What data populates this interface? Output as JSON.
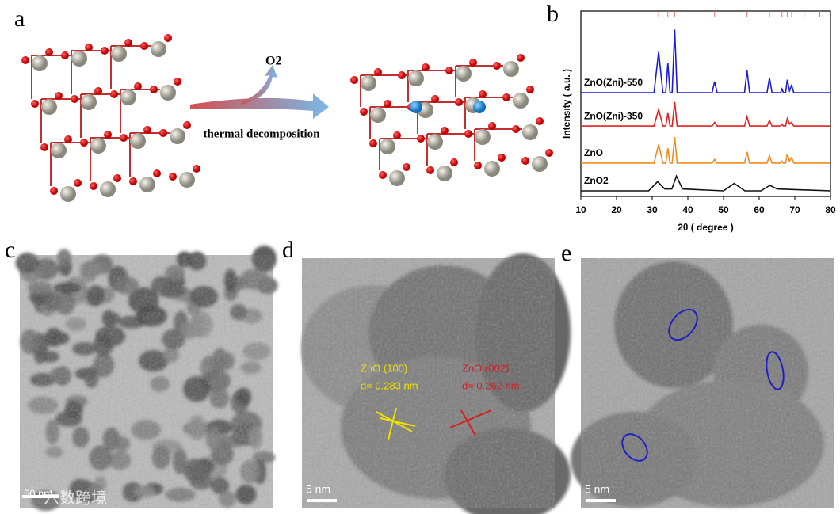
{
  "panels": {
    "a": {
      "letter": "a",
      "gas": "O2",
      "arrow_label": "thermal decomposition"
    },
    "b": {
      "letter": "b"
    },
    "c": {
      "letter": "c",
      "scale_bar": "50 nm",
      "watermark": "六数跨境"
    },
    "d": {
      "letter": "d",
      "scale_bar": "5 nm",
      "plane1": "ZnO (100)",
      "spacing1": "d= 0.283 nm",
      "plane2": "ZnO (002)",
      "spacing2": "d= 0.262 nm"
    },
    "e": {
      "letter": "e",
      "scale_bar": "5 nm"
    }
  },
  "chart_data": {
    "type": "line",
    "x_label": "2θ ( degree )",
    "y_label": "Intensity ( a.u. )",
    "xlim": [
      10,
      80
    ],
    "xticks": [
      10,
      20,
      30,
      40,
      50,
      60,
      70,
      80
    ],
    "ylim": [
      0,
      100
    ],
    "reference_peaks": [
      31.8,
      34.4,
      36.3,
      47.5,
      56.6,
      62.9,
      66.4,
      67.9,
      69.1,
      72.6,
      77.0
    ],
    "reference_color": "#e07070",
    "series": [
      {
        "name": "ZnO(Zni)-550",
        "color": "#1a1adb",
        "x": [
          10,
          30.5,
          31.8,
          33,
          33.8,
          34.4,
          35,
          35.6,
          36.3,
          37,
          46.8,
          47.5,
          48.2,
          55.9,
          56.6,
          57.3,
          62.2,
          62.9,
          63.6,
          66.0,
          66.4,
          66.8,
          67.4,
          67.9,
          68.5,
          69.1,
          69.7,
          80
        ],
        "values": [
          56,
          56,
          78,
          56,
          56,
          72,
          56,
          56,
          90,
          56,
          56,
          62,
          56,
          56,
          68,
          56,
          56,
          64,
          56,
          56,
          58,
          56,
          56,
          63,
          57,
          60,
          56,
          56
        ]
      },
      {
        "name": "ZnO(Zni)-350",
        "color": "#e02020",
        "x": [
          10,
          30.5,
          31.8,
          33,
          33.8,
          34.4,
          35,
          35.6,
          36.3,
          37,
          46.8,
          47.5,
          48.2,
          55.9,
          56.6,
          57.3,
          62.2,
          62.9,
          63.6,
          66.0,
          66.4,
          66.8,
          67.4,
          67.9,
          68.5,
          69.1,
          69.7,
          80
        ],
        "values": [
          38,
          38,
          47,
          38,
          38,
          45,
          38,
          38,
          51,
          38,
          38,
          40,
          38,
          38,
          43,
          38,
          38,
          41,
          38,
          38,
          39,
          38,
          38,
          42,
          39,
          40,
          38,
          38
        ]
      },
      {
        "name": "ZnO",
        "color": "#f08a1c",
        "x": [
          10,
          30.5,
          31.8,
          33,
          33.8,
          34.4,
          35,
          35.6,
          36.3,
          37,
          46.8,
          47.5,
          48.2,
          55.9,
          56.6,
          57.3,
          62.2,
          62.9,
          63.6,
          66.0,
          66.4,
          66.8,
          67.4,
          67.9,
          68.5,
          69.1,
          69.7,
          80
        ],
        "values": [
          18,
          18,
          28,
          18,
          18,
          26,
          18,
          18,
          32,
          18,
          18,
          20,
          18,
          18,
          24,
          18,
          18,
          22,
          18,
          18,
          19,
          18,
          18,
          23,
          19,
          21,
          18,
          18
        ]
      },
      {
        "name": "ZnO2",
        "color": "#111111",
        "x": [
          10,
          29,
          31.5,
          33.5,
          35.5,
          36.8,
          38.5,
          50,
          53,
          56,
          60.5,
          63,
          65,
          80
        ],
        "values": [
          3,
          3,
          8,
          4,
          4,
          11,
          4,
          3,
          7,
          3,
          3,
          6,
          4,
          3
        ]
      }
    ]
  }
}
